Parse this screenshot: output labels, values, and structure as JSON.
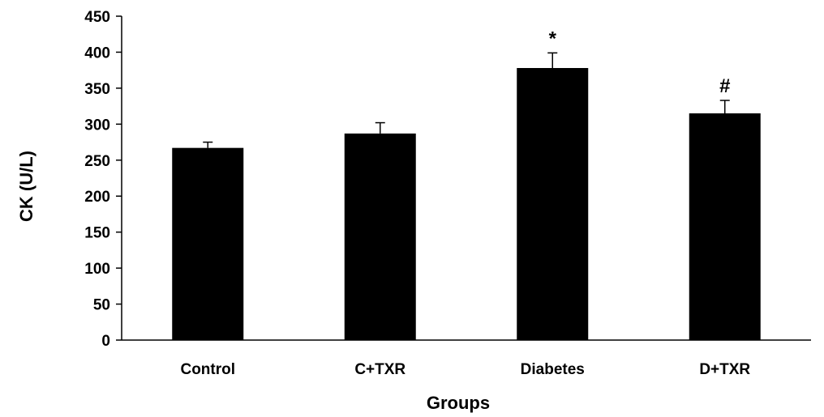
{
  "chart_data": {
    "type": "bar",
    "categories": [
      "Control",
      "C+TXR",
      "Diabetes",
      "D+TXR"
    ],
    "values": [
      267,
      287,
      378,
      315
    ],
    "error_upper": [
      8,
      15,
      21,
      18
    ],
    "annotations": [
      "",
      "",
      "*",
      "#"
    ],
    "xlabel": "Groups",
    "ylabel": "CK (U/L)",
    "ylim": [
      0,
      450
    ],
    "yticks": [
      0,
      50,
      100,
      150,
      200,
      250,
      300,
      350,
      400,
      450
    ],
    "grid": false,
    "legend": "none",
    "bar_color": "#000000"
  }
}
